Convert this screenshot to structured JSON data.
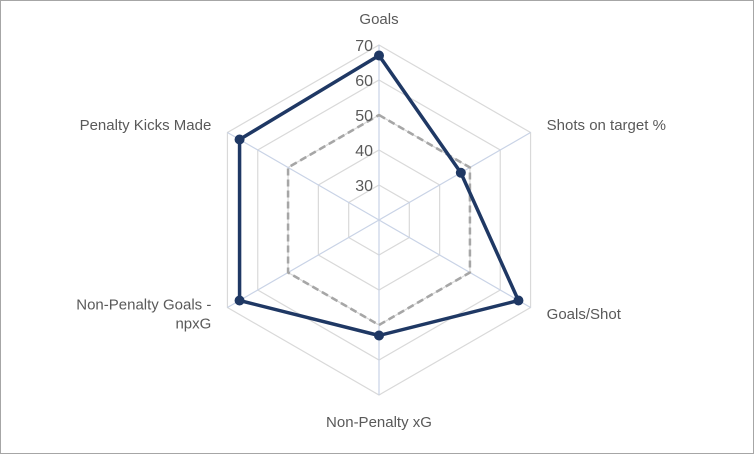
{
  "chart_data": {
    "type": "radar",
    "axes": [
      "Goals",
      "Shots on target %",
      "Goals/Shot",
      "Non-Penalty xG",
      "Non-Penalty Goals - npxG",
      "Penalty Kicks Made"
    ],
    "axis_label_lines": [
      [
        "Goals"
      ],
      [
        "Shots on target %"
      ],
      [
        "Goals/Shot"
      ],
      [
        "Non-Penalty xG"
      ],
      [
        "Non-Penalty Goals -",
        "npxG"
      ],
      [
        "Penalty Kicks Made"
      ]
    ],
    "r_ticks": [
      30,
      40,
      50,
      60,
      70
    ],
    "r_range": [
      20,
      70
    ],
    "grid": true,
    "legend": "none",
    "series": [
      {
        "values": [
          67,
          47,
          66,
          53,
          66,
          66
        ],
        "color": "#1f3864",
        "style": "solid",
        "marker": "circle"
      },
      {
        "values": [
          50,
          50,
          50,
          50,
          50,
          50
        ],
        "color": "#a6a6a6",
        "style": "dashed",
        "marker": "none"
      }
    ],
    "grid_color": "#d9d9d9",
    "spoke_color": "#c9d3e6"
  }
}
